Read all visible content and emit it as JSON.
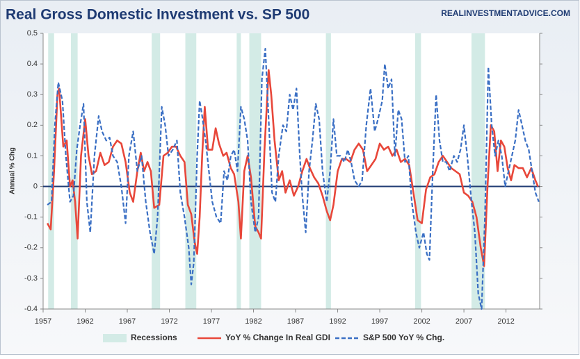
{
  "chart_data": {
    "type": "line",
    "title": "Real Gross Domestic Investment vs. SP 500",
    "source": "REALINVESTMENTADVICE.COM",
    "y_label": "Annual % Chg",
    "xlim": [
      1957,
      2016
    ],
    "xticks": [
      1957,
      1962,
      1967,
      1972,
      1977,
      1982,
      1987,
      1992,
      1997,
      2002,
      2007,
      2012
    ],
    "ylim": [
      -0.4,
      0.5
    ],
    "yticks": [
      0.5,
      0.4,
      0.3,
      0.2,
      0.1,
      0,
      -0.1,
      -0.2,
      -0.3,
      -0.4
    ],
    "grid": false,
    "legend": "bottom",
    "recessions": {
      "name": "Recessions",
      "color": "#d3ebe6",
      "spans": [
        [
          1957.6,
          1958.3
        ],
        [
          1960.3,
          1961.1
        ],
        [
          1969.9,
          1970.9
        ],
        [
          1973.9,
          1975.2
        ],
        [
          1980.0,
          1980.5
        ],
        [
          1981.5,
          1982.9
        ],
        [
          1990.6,
          1991.2
        ],
        [
          2001.2,
          2001.9
        ],
        [
          2007.9,
          2009.5
        ]
      ]
    },
    "series": [
      {
        "name": "YoY % Change In Real GDI",
        "color": "#e8473a",
        "dash": false,
        "x": [
          1957.5,
          1957.9,
          1958.3,
          1958.7,
          1958.9,
          1959.4,
          1959.8,
          1960.2,
          1960.5,
          1960.8,
          1961.1,
          1961.5,
          1962.0,
          1962.4,
          1962.8,
          1963.3,
          1963.8,
          1964.3,
          1964.8,
          1965.3,
          1965.8,
          1966.3,
          1966.8,
          1967.3,
          1967.7,
          1968.2,
          1968.6,
          1969.0,
          1969.4,
          1969.8,
          1970.2,
          1970.8,
          1971.3,
          1971.8,
          1972.3,
          1972.8,
          1973.3,
          1973.8,
          1974.2,
          1974.6,
          1975.0,
          1975.3,
          1975.6,
          1975.9,
          1976.2,
          1976.6,
          1977.1,
          1977.5,
          1977.9,
          1978.4,
          1978.8,
          1979.3,
          1979.7,
          1980.2,
          1980.5,
          1980.9,
          1981.3,
          1981.7,
          1982.2,
          1982.6,
          1982.9,
          1983.3,
          1983.8,
          1984.1,
          1984.5,
          1985.0,
          1985.4,
          1985.8,
          1986.3,
          1986.8,
          1987.3,
          1987.8,
          1988.3,
          1988.7,
          1989.2,
          1989.7,
          1990.2,
          1990.7,
          1991.1,
          1991.5,
          1992.0,
          1992.5,
          1993.0,
          1993.5,
          1994.0,
          1994.5,
          1995.0,
          1995.5,
          1996.0,
          1996.5,
          1997.0,
          1997.5,
          1998.0,
          1998.5,
          1999.0,
          1999.5,
          2000.0,
          2000.5,
          2001.0,
          2001.5,
          2002.0,
          2002.5,
          2003.0,
          2003.5,
          2004.0,
          2004.5,
          2005.0,
          2005.5,
          2006.0,
          2006.5,
          2007.0,
          2007.5,
          2008.0,
          2008.5,
          2009.0,
          2009.4,
          2009.8,
          2010.2,
          2010.6,
          2011.0,
          2011.4,
          2011.8,
          2012.2,
          2012.6,
          2013.0,
          2013.5,
          2014.0,
          2014.5,
          2015.0,
          2015.5,
          2015.8
        ],
        "values": [
          -0.12,
          -0.14,
          0.05,
          0.3,
          0.32,
          0.13,
          0.15,
          0.0,
          0.02,
          -0.05,
          -0.17,
          0.1,
          0.22,
          0.1,
          0.04,
          0.05,
          0.11,
          0.07,
          0.08,
          0.13,
          0.15,
          0.14,
          0.08,
          -0.02,
          -0.05,
          0.05,
          0.11,
          0.05,
          0.08,
          0.05,
          -0.07,
          -0.06,
          0.1,
          0.11,
          0.13,
          0.13,
          0.1,
          0.08,
          -0.06,
          -0.09,
          -0.18,
          -0.22,
          -0.1,
          0.1,
          0.26,
          0.12,
          0.12,
          0.19,
          0.14,
          0.1,
          0.11,
          0.06,
          0.04,
          -0.05,
          -0.17,
          0.05,
          0.1,
          0.03,
          -0.13,
          -0.15,
          -0.17,
          0.12,
          0.38,
          0.3,
          0.15,
          0.02,
          0.05,
          -0.02,
          0.02,
          -0.03,
          0.0,
          0.05,
          0.09,
          0.06,
          0.03,
          0.01,
          -0.03,
          -0.08,
          -0.11,
          -0.06,
          0.05,
          0.09,
          0.09,
          0.08,
          0.12,
          0.14,
          0.12,
          0.05,
          0.07,
          0.09,
          0.14,
          0.12,
          0.13,
          0.1,
          0.12,
          0.08,
          0.09,
          0.07,
          -0.02,
          -0.11,
          -0.12,
          -0.01,
          0.03,
          0.04,
          0.08,
          0.1,
          0.08,
          0.06,
          0.05,
          0.04,
          -0.02,
          -0.03,
          -0.05,
          -0.1,
          -0.2,
          -0.26,
          0.0,
          0.2,
          0.18,
          0.05,
          0.15,
          0.13,
          0.06,
          0.02,
          0.07,
          0.06,
          0.06,
          0.03,
          0.06,
          0.02,
          0.0
        ]
      },
      {
        "name": "S&P 500 YoY % Chg.",
        "color": "#3a6fc4",
        "dash": true,
        "x": [
          1957.5,
          1958.0,
          1958.4,
          1958.8,
          1959.3,
          1959.7,
          1960.2,
          1960.6,
          1961.0,
          1961.4,
          1961.8,
          1962.2,
          1962.6,
          1963.1,
          1963.6,
          1964.0,
          1964.5,
          1964.9,
          1965.3,
          1965.8,
          1966.3,
          1966.8,
          1967.2,
          1967.7,
          1968.2,
          1968.7,
          1969.2,
          1969.7,
          1970.2,
          1970.6,
          1971.1,
          1971.5,
          1971.9,
          1972.4,
          1972.9,
          1973.3,
          1973.8,
          1974.3,
          1974.6,
          1974.9,
          1975.3,
          1975.6,
          1975.9,
          1976.3,
          1976.7,
          1977.1,
          1977.6,
          1978.1,
          1978.5,
          1978.9,
          1979.3,
          1979.7,
          1980.1,
          1980.5,
          1980.9,
          1981.3,
          1981.7,
          1982.2,
          1982.6,
          1983.0,
          1983.4,
          1983.8,
          1984.2,
          1984.6,
          1985.0,
          1985.5,
          1985.9,
          1986.3,
          1986.7,
          1987.1,
          1987.5,
          1987.8,
          1988.2,
          1988.6,
          1989.0,
          1989.4,
          1989.8,
          1990.2,
          1990.7,
          1991.1,
          1991.5,
          1991.9,
          1992.3,
          1992.8,
          1993.2,
          1993.6,
          1994.0,
          1994.5,
          1994.9,
          1995.4,
          1995.9,
          1996.4,
          1996.8,
          1997.3,
          1997.6,
          1998.0,
          1998.4,
          1998.8,
          1999.2,
          1999.6,
          2000.0,
          2000.4,
          2000.8,
          2001.3,
          2001.7,
          2002.2,
          2002.6,
          2002.9,
          2003.3,
          2003.7,
          2004.1,
          2004.5,
          2004.9,
          2005.3,
          2005.8,
          2006.2,
          2006.6,
          2007.0,
          2007.4,
          2007.9,
          2008.3,
          2008.7,
          2009.1,
          2009.5,
          2009.9,
          2010.3,
          2010.7,
          2011.1,
          2011.5,
          2011.9,
          2012.3,
          2012.7,
          2013.1,
          2013.5,
          2013.9,
          2014.3,
          2014.7,
          2015.1,
          2015.5,
          2015.9
        ],
        "values": [
          -0.06,
          -0.05,
          0.2,
          0.34,
          0.28,
          0.1,
          -0.05,
          -0.03,
          0.12,
          0.2,
          0.27,
          -0.05,
          -0.15,
          0.1,
          0.23,
          0.18,
          0.15,
          0.16,
          0.1,
          0.08,
          0.0,
          -0.12,
          0.1,
          0.18,
          0.05,
          0.1,
          -0.05,
          -0.15,
          -0.22,
          -0.1,
          0.26,
          0.2,
          0.1,
          0.12,
          0.15,
          -0.02,
          -0.1,
          -0.2,
          -0.32,
          -0.25,
          0.1,
          0.28,
          0.23,
          0.15,
          0.05,
          -0.05,
          -0.1,
          -0.12,
          0.05,
          0.02,
          0.1,
          0.12,
          0.05,
          0.26,
          0.22,
          0.15,
          -0.05,
          -0.15,
          -0.1,
          0.35,
          0.45,
          0.22,
          -0.02,
          -0.05,
          0.1,
          0.2,
          0.18,
          0.3,
          0.25,
          0.32,
          0.1,
          -0.03,
          -0.15,
          0.05,
          0.15,
          0.27,
          0.22,
          0.05,
          -0.05,
          0.05,
          0.22,
          0.1,
          0.1,
          0.08,
          0.12,
          0.08,
          0.02,
          0.0,
          0.02,
          0.2,
          0.32,
          0.18,
          0.22,
          0.28,
          0.4,
          0.32,
          0.35,
          0.1,
          0.25,
          0.22,
          0.08,
          0.1,
          -0.05,
          -0.15,
          -0.2,
          -0.15,
          -0.22,
          -0.24,
          0.05,
          0.3,
          0.15,
          0.08,
          0.08,
          0.05,
          0.1,
          0.08,
          0.12,
          0.2,
          0.1,
          -0.05,
          -0.15,
          -0.35,
          -0.4,
          -0.1,
          0.39,
          0.2,
          0.1,
          0.15,
          0.1,
          0.0,
          0.05,
          0.1,
          0.15,
          0.25,
          0.2,
          0.15,
          0.12,
          0.05,
          -0.02,
          -0.05
        ]
      }
    ]
  }
}
